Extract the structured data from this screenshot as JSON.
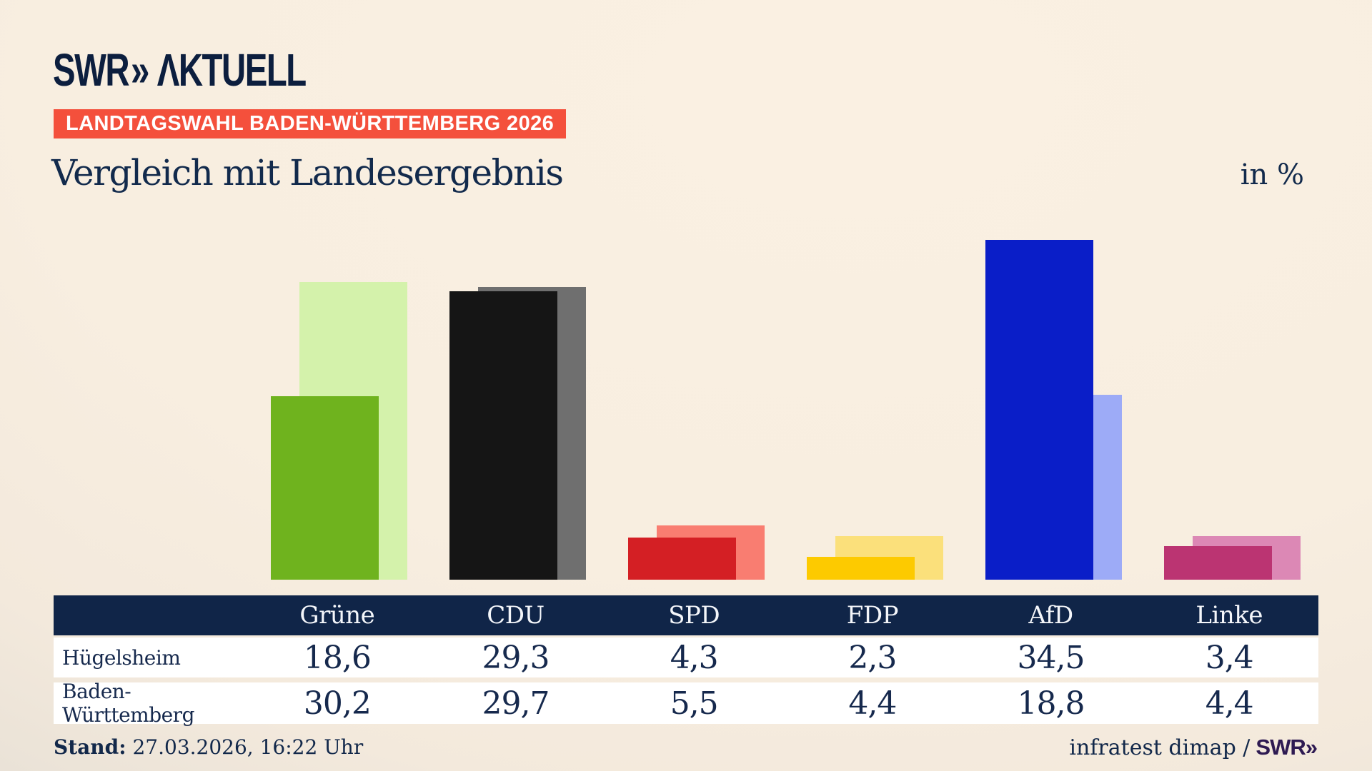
{
  "header": {
    "logo_swr": "SWR",
    "logo_chevrons": "»",
    "logo_aktuell": "ΛKTUELL"
  },
  "badge": {
    "label": "LANDTAGSWAHL BADEN-WÜRTTEMBERG 2026"
  },
  "headline": {
    "title": "Vergleich mit Landesergebnis",
    "unit": "in %"
  },
  "chart_data": {
    "type": "bar",
    "categories": [
      "Grüne",
      "CDU",
      "SPD",
      "FDP",
      "AfD",
      "Linke"
    ],
    "series": [
      {
        "name": "Hügelsheim",
        "values": [
          18.6,
          29.3,
          4.3,
          2.3,
          34.5,
          3.4
        ],
        "colors": [
          "#6fb31e",
          "#151515",
          "#d41f24",
          "#fdca00",
          "#0a1ec8",
          "#bb3472"
        ]
      },
      {
        "name": "Baden-Württemberg",
        "values": [
          30.2,
          29.7,
          5.5,
          4.4,
          18.8,
          4.4
        ],
        "colors": [
          "#d4f2ab",
          "#6f6f6f",
          "#f97d71",
          "#fbe07b",
          "#9dabf7",
          "#dc88b5"
        ]
      }
    ],
    "value_unit": "%",
    "ylim": [
      0,
      36
    ],
    "legend_position": "none",
    "axes_visible": false,
    "note": "front bar = Hügelsheim, offset back bar = Baden-Württemberg; values shown in table below"
  },
  "table": {
    "columns": [
      "Grüne",
      "CDU",
      "SPD",
      "FDP",
      "AfD",
      "Linke"
    ],
    "rows": [
      {
        "label": "Hügelsheim",
        "values": [
          "18,6",
          "29,3",
          "4,3",
          "2,3",
          "34,5",
          "3,4"
        ]
      },
      {
        "label": "Baden-Württemberg",
        "values": [
          "30,2",
          "29,7",
          "5,5",
          "4,4",
          "18,8",
          "4,4"
        ]
      }
    ]
  },
  "footer": {
    "stand_label": "Stand:",
    "stand_value": "27.03.2026, 16:22 Uhr",
    "source": "infratest dimap /",
    "brand": "SWR»"
  },
  "colors": {
    "badge_bg": "#f4503c",
    "table_header_bg": "#102548",
    "table_row_bg": "#ffffff",
    "text_navy": "#12284a",
    "brand_purple": "#2e1a52"
  }
}
